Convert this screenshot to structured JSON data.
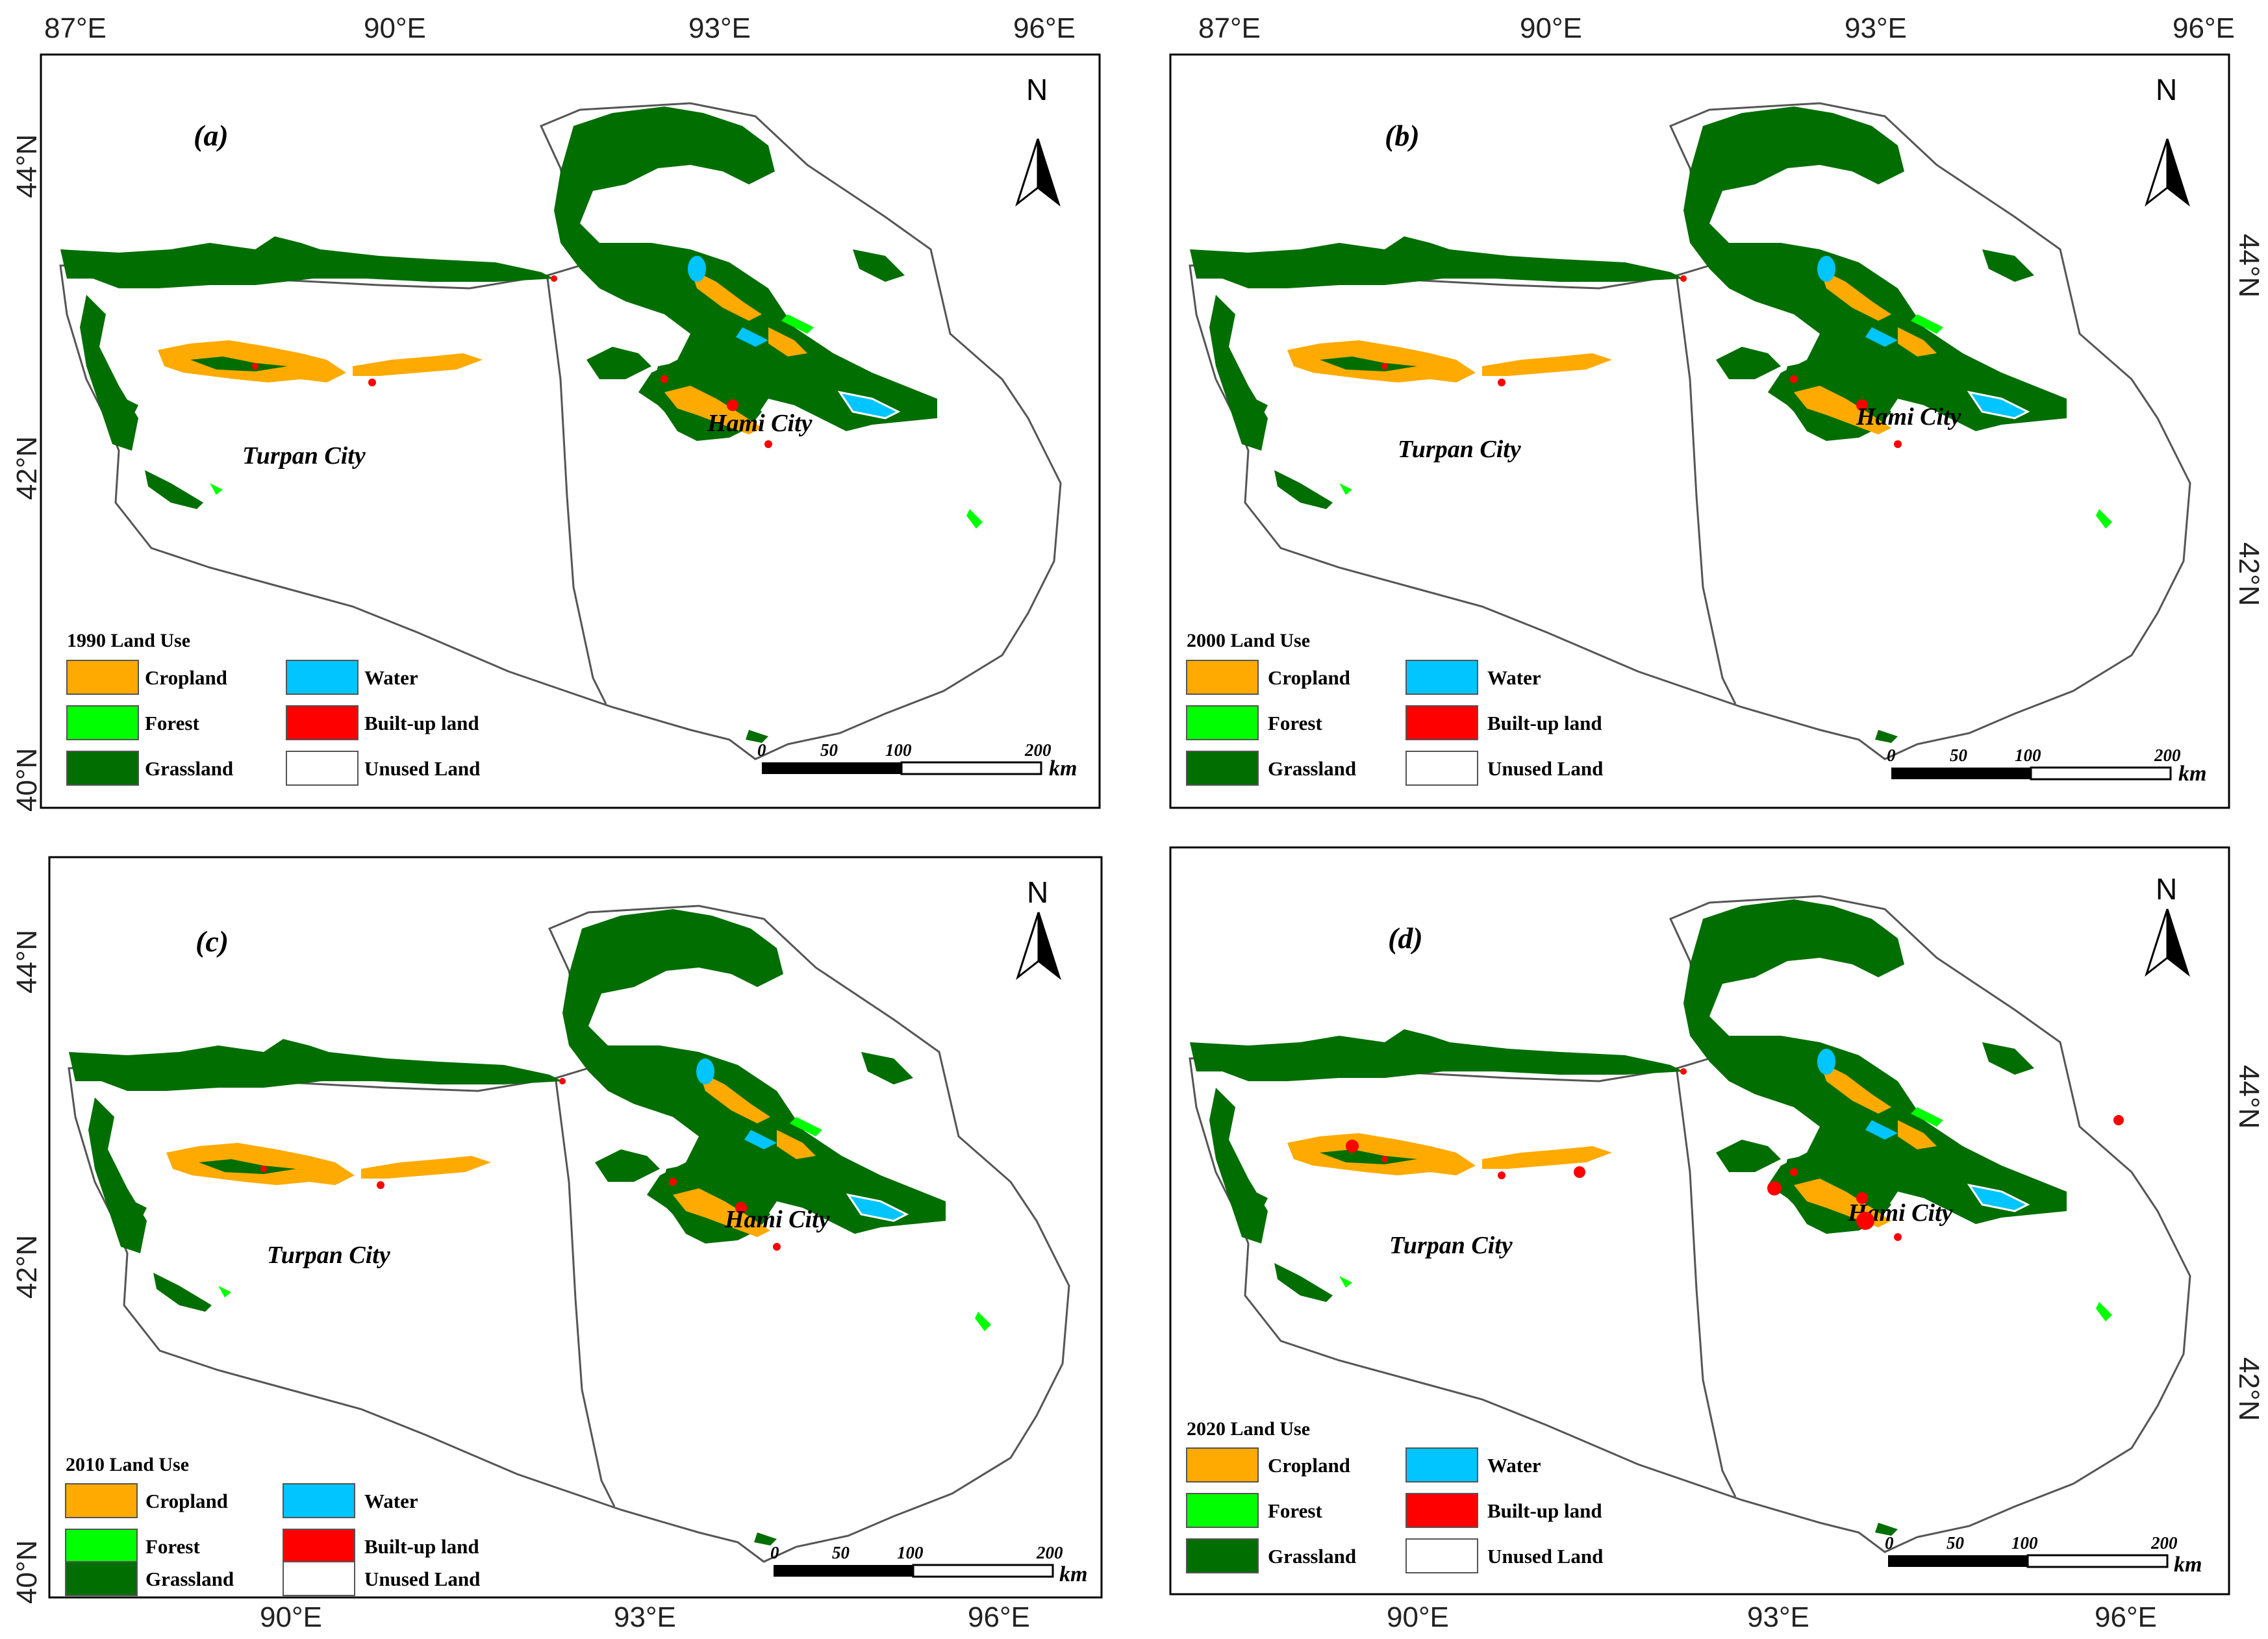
{
  "map": {
    "top_lon_ticks": [
      "87°E",
      "90°E",
      "93°E",
      "96°E"
    ],
    "bottom_lon_ticks": [
      "90°E",
      "93°E",
      "96°E"
    ],
    "lat_ticks": [
      "44°N",
      "42°N",
      "40°N"
    ],
    "north_label": "N",
    "cities": {
      "turpan": "Turpan City",
      "hami": "Hami City"
    },
    "scale_bar": {
      "labels": [
        "0",
        "50",
        "100",
        "200"
      ],
      "unit": "km"
    },
    "legend_items": [
      {
        "label": "Cropland",
        "color": "#ffaa00"
      },
      {
        "label": "Water",
        "color": "#00c5ff"
      },
      {
        "label": "Forest",
        "color": "#00ff00"
      },
      {
        "label": "Built-up land",
        "color": "#ff0000"
      },
      {
        "label": "Grassland",
        "color": "#006e00"
      },
      {
        "label": "Unused Land",
        "color": "#ffffff"
      }
    ],
    "panels": [
      {
        "letter": "(a)",
        "legend_title": "1990 Land Use"
      },
      {
        "letter": "(b)",
        "legend_title": "2000 Land Use"
      },
      {
        "letter": "(c)",
        "legend_title": "2010 Land Use"
      },
      {
        "letter": "(d)",
        "legend_title": "2020 Land Use"
      }
    ]
  }
}
